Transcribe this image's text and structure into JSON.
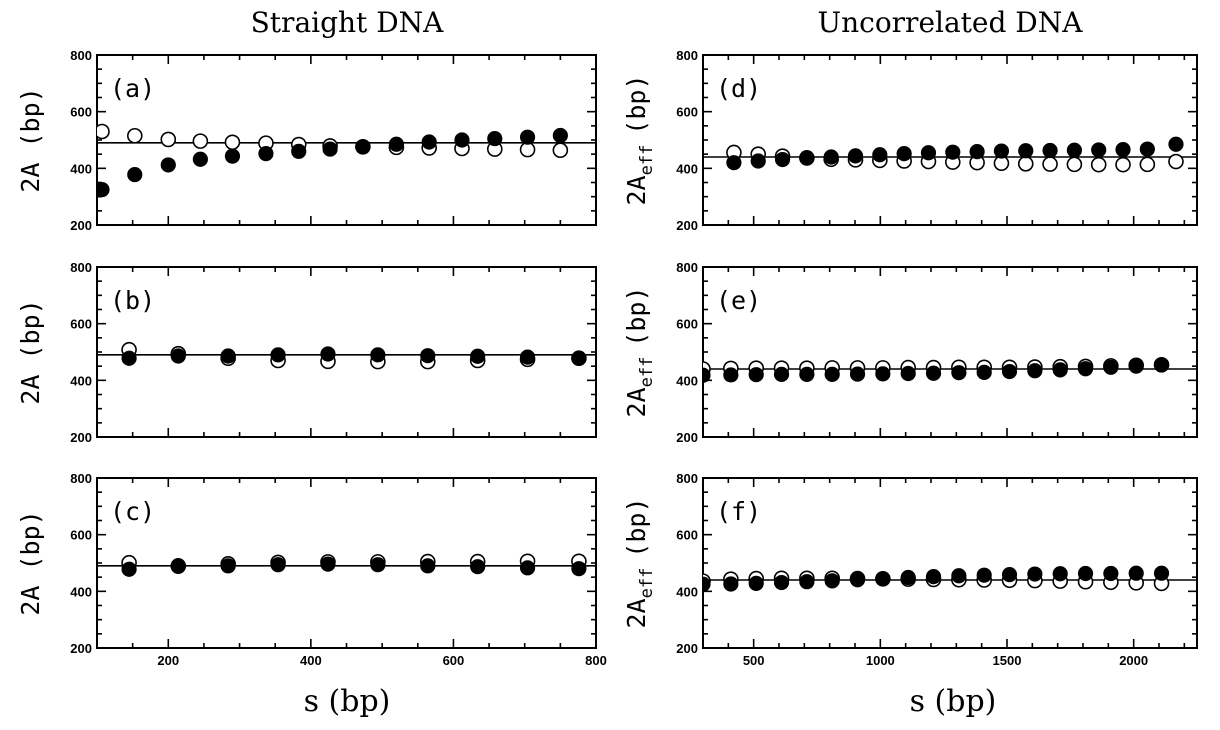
{
  "columns": {
    "left_title": "Straight DNA",
    "right_title": "Uncorrelated DNA"
  },
  "axes": {
    "xlabel": "s (bp)",
    "ylabel_left": "2A (bp)",
    "ylabel_right_main": "2A",
    "ylabel_right_sub": "eff",
    "ylabel_right_unit": "(bp)"
  },
  "chart_data": [
    {
      "type": "scatter",
      "panel": "(a)",
      "column": "left",
      "xlim": [
        100,
        800
      ],
      "ylim": [
        200,
        800
      ],
      "xticks": [
        200,
        400,
        600,
        800
      ],
      "yticks": [
        200,
        400,
        600,
        800
      ],
      "hline": 490,
      "series": [
        {
          "marker": "open",
          "x": [
            107,
            153,
            200,
            245,
            290,
            337,
            383,
            427,
            473,
            520,
            566,
            612,
            658,
            704,
            750
          ],
          "y": [
            530,
            515,
            502,
            496,
            492,
            489,
            484,
            479,
            476,
            474,
            472,
            470,
            468,
            466,
            464
          ]
        },
        {
          "marker": "filled",
          "x": [
            107,
            153,
            200,
            245,
            290,
            337,
            383,
            427,
            473,
            520,
            566,
            612,
            658,
            704,
            750
          ],
          "y": [
            325,
            378,
            412,
            432,
            443,
            452,
            460,
            468,
            476,
            485,
            493,
            500,
            505,
            510,
            516
          ]
        }
      ]
    },
    {
      "type": "scatter",
      "panel": "(d)",
      "column": "right",
      "xlim": [
        300,
        2250
      ],
      "ylim": [
        200,
        800
      ],
      "xticks": [
        500,
        1000,
        1500,
        2000
      ],
      "yticks": [
        200,
        400,
        600,
        800
      ],
      "hline": 440,
      "series": [
        {
          "marker": "open",
          "x": [
            422,
            518,
            614,
            710,
            806,
            902,
            998,
            1094,
            1190,
            1286,
            1382,
            1478,
            1574,
            1670,
            1766,
            1862,
            1958,
            2054,
            2167
          ],
          "y": [
            456,
            450,
            443,
            437,
            432,
            430,
            428,
            426,
            424,
            422,
            420,
            418,
            416,
            415,
            414,
            413,
            413,
            414,
            424
          ]
        },
        {
          "marker": "filled",
          "x": [
            422,
            518,
            614,
            710,
            806,
            902,
            998,
            1094,
            1190,
            1286,
            1382,
            1478,
            1574,
            1670,
            1766,
            1862,
            1958,
            2054,
            2167
          ],
          "y": [
            420,
            426,
            431,
            436,
            440,
            444,
            448,
            452,
            455,
            457,
            459,
            461,
            462,
            463,
            464,
            465,
            466,
            468,
            485
          ]
        }
      ]
    },
    {
      "type": "scatter",
      "panel": "(b)",
      "column": "left",
      "xlim": [
        100,
        800
      ],
      "ylim": [
        200,
        800
      ],
      "xticks": [
        200,
        400,
        600,
        800
      ],
      "yticks": [
        200,
        400,
        600,
        800
      ],
      "hline": 490,
      "series": [
        {
          "marker": "open",
          "x": [
            145,
            214,
            284,
            354,
            424,
            494,
            564,
            634,
            704,
            776
          ],
          "y": [
            508,
            494,
            478,
            470,
            467,
            466,
            466,
            470,
            474,
            478
          ]
        },
        {
          "marker": "filled",
          "x": [
            145,
            214,
            284,
            354,
            424,
            494,
            564,
            634,
            704,
            776
          ],
          "y": [
            478,
            486,
            486,
            490,
            493,
            490,
            487,
            485,
            482,
            478
          ]
        }
      ]
    },
    {
      "type": "scatter",
      "panel": "(e)",
      "column": "right",
      "xlim": [
        300,
        2250
      ],
      "ylim": [
        200,
        800
      ],
      "xticks": [
        500,
        1000,
        1500,
        2000
      ],
      "yticks": [
        200,
        400,
        600,
        800
      ],
      "hline": 440,
      "series": [
        {
          "marker": "open",
          "x": [
            300,
            410,
            510,
            610,
            710,
            810,
            910,
            1010,
            1110,
            1210,
            1310,
            1410,
            1510,
            1610,
            1710,
            1810,
            1910,
            2010,
            2110
          ],
          "y": [
            440,
            442,
            443,
            443,
            443,
            444,
            444,
            444,
            445,
            445,
            446,
            446,
            446,
            447,
            448,
            449,
            451,
            453,
            455
          ]
        },
        {
          "marker": "filled",
          "x": [
            300,
            410,
            510,
            610,
            710,
            810,
            910,
            1010,
            1110,
            1210,
            1310,
            1410,
            1510,
            1610,
            1710,
            1810,
            1910,
            2010,
            2110
          ],
          "y": [
            418,
            419,
            420,
            421,
            421,
            421,
            422,
            423,
            424,
            425,
            427,
            428,
            431,
            434,
            437,
            441,
            446,
            450,
            454
          ]
        }
      ]
    },
    {
      "type": "scatter",
      "panel": "(c)",
      "column": "left",
      "xlim": [
        100,
        800
      ],
      "ylim": [
        200,
        800
      ],
      "xticks": [
        200,
        400,
        600,
        800
      ],
      "yticks": [
        200,
        400,
        600,
        800
      ],
      "hline": 490,
      "series": [
        {
          "marker": "open",
          "x": [
            145,
            214,
            284,
            354,
            424,
            494,
            564,
            634,
            704,
            776
          ],
          "y": [
            501,
            490,
            497,
            502,
            504,
            504,
            505,
            505,
            506,
            506
          ]
        },
        {
          "marker": "filled",
          "x": [
            145,
            214,
            284,
            354,
            424,
            494,
            564,
            634,
            704,
            776
          ],
          "y": [
            478,
            488,
            490,
            494,
            496,
            494,
            490,
            487,
            483,
            480
          ]
        }
      ]
    },
    {
      "type": "scatter",
      "panel": "(f)",
      "column": "right",
      "xlim": [
        300,
        2250
      ],
      "ylim": [
        200,
        800
      ],
      "xticks": [
        500,
        1000,
        1500,
        2000
      ],
      "yticks": [
        200,
        400,
        600,
        800
      ],
      "hline": 440,
      "series": [
        {
          "marker": "open",
          "x": [
            300,
            410,
            510,
            610,
            710,
            810,
            910,
            1010,
            1110,
            1210,
            1310,
            1410,
            1510,
            1610,
            1710,
            1810,
            1910,
            2010,
            2110
          ],
          "y": [
            436,
            443,
            445,
            446,
            446,
            446,
            445,
            444,
            443,
            442,
            441,
            440,
            439,
            438,
            436,
            434,
            432,
            430,
            428
          ]
        },
        {
          "marker": "filled",
          "x": [
            300,
            410,
            510,
            610,
            710,
            810,
            910,
            1010,
            1110,
            1210,
            1310,
            1410,
            1510,
            1610,
            1710,
            1810,
            1910,
            2010,
            2110
          ],
          "y": [
            425,
            426,
            428,
            431,
            434,
            437,
            441,
            445,
            449,
            452,
            455,
            457,
            459,
            461,
            462,
            463,
            463,
            464,
            464
          ]
        }
      ]
    }
  ]
}
